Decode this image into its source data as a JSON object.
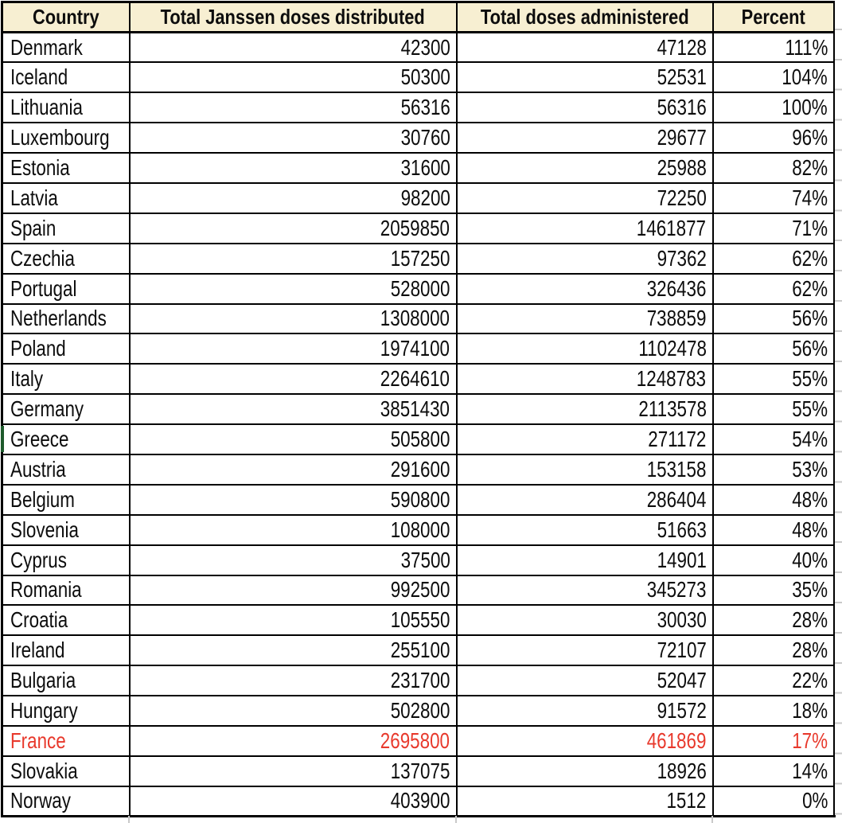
{
  "app": {
    "description": "Spreadsheet table of Janssen COVID-19 vaccine doses by country"
  },
  "colors": {
    "header_background": "#F7EFD2",
    "border_black": "#000000",
    "highlight_red": "#E8392C",
    "gridline_gray": "#C9C9C9",
    "green_marker": "#1D5A2C",
    "text": "#0D0D0D"
  },
  "table": {
    "headers": [
      "Country",
      "Total Janssen doses distributed",
      "Total doses administered",
      "Percent"
    ],
    "rows": [
      {
        "country": "Denmark",
        "distributed": "42300",
        "administered": "47128",
        "percent": "111%",
        "highlight": false
      },
      {
        "country": "Iceland",
        "distributed": "50300",
        "administered": "52531",
        "percent": "104%",
        "highlight": false
      },
      {
        "country": "Lithuania",
        "distributed": "56316",
        "administered": "56316",
        "percent": "100%",
        "highlight": false
      },
      {
        "country": "Luxembourg",
        "distributed": "30760",
        "administered": "29677",
        "percent": "96%",
        "highlight": false
      },
      {
        "country": "Estonia",
        "distributed": "31600",
        "administered": "25988",
        "percent": "82%",
        "highlight": false
      },
      {
        "country": "Latvia",
        "distributed": "98200",
        "administered": "72250",
        "percent": "74%",
        "highlight": false
      },
      {
        "country": "Spain",
        "distributed": "2059850",
        "administered": "1461877",
        "percent": "71%",
        "highlight": false
      },
      {
        "country": "Czechia",
        "distributed": "157250",
        "administered": "97362",
        "percent": "62%",
        "highlight": false
      },
      {
        "country": "Portugal",
        "distributed": "528000",
        "administered": "326436",
        "percent": "62%",
        "highlight": false
      },
      {
        "country": "Netherlands",
        "distributed": "1308000",
        "administered": "738859",
        "percent": "56%",
        "highlight": false
      },
      {
        "country": "Poland",
        "distributed": "1974100",
        "administered": "1102478",
        "percent": "56%",
        "highlight": false
      },
      {
        "country": "Italy",
        "distributed": "2264610",
        "administered": "1248783",
        "percent": "55%",
        "highlight": false
      },
      {
        "country": "Germany",
        "distributed": "3851430",
        "administered": "2113578",
        "percent": "55%",
        "highlight": false
      },
      {
        "country": "Greece",
        "distributed": "505800",
        "administered": "271172",
        "percent": "54%",
        "highlight": false
      },
      {
        "country": "Austria",
        "distributed": "291600",
        "administered": "153158",
        "percent": "53%",
        "highlight": false
      },
      {
        "country": "Belgium",
        "distributed": "590800",
        "administered": "286404",
        "percent": "48%",
        "highlight": false
      },
      {
        "country": "Slovenia",
        "distributed": "108000",
        "administered": "51663",
        "percent": "48%",
        "highlight": false
      },
      {
        "country": "Cyprus",
        "distributed": "37500",
        "administered": "14901",
        "percent": "40%",
        "highlight": false
      },
      {
        "country": "Romania",
        "distributed": "992500",
        "administered": "345273",
        "percent": "35%",
        "highlight": false
      },
      {
        "country": "Croatia",
        "distributed": "105550",
        "administered": "30030",
        "percent": "28%",
        "highlight": false
      },
      {
        "country": "Ireland",
        "distributed": "255100",
        "administered": "72107",
        "percent": "28%",
        "highlight": false
      },
      {
        "country": "Bulgaria",
        "distributed": "231700",
        "administered": "52047",
        "percent": "22%",
        "highlight": false
      },
      {
        "country": "Hungary",
        "distributed": "502800",
        "administered": "91572",
        "percent": "18%",
        "highlight": false
      },
      {
        "country": "France",
        "distributed": "2695800",
        "administered": "461869",
        "percent": "17%",
        "highlight": true
      },
      {
        "country": "Slovakia",
        "distributed": "137075",
        "administered": "18926",
        "percent": "14%",
        "highlight": false
      },
      {
        "country": "Norway",
        "distributed": "403900",
        "administered": "1512",
        "percent": "0%",
        "highlight": false
      }
    ]
  }
}
